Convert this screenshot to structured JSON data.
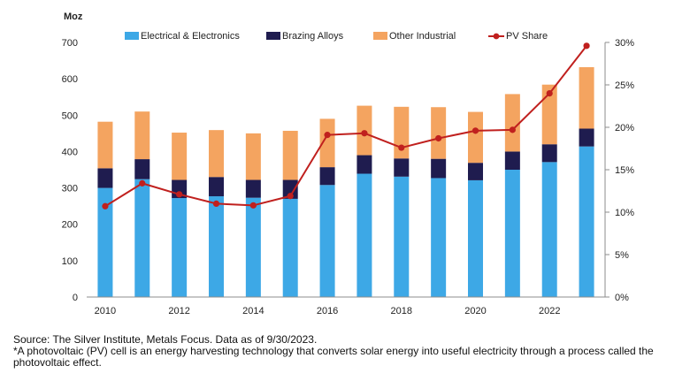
{
  "chart_data": {
    "type": "bar",
    "stacked": true,
    "y_unit_label": "Moz",
    "categories": [
      "2010",
      "2011",
      "2012",
      "2013",
      "2014",
      "2015",
      "2016",
      "2017",
      "2018",
      "2019",
      "2020",
      "2021",
      "2022",
      "2023"
    ],
    "x_tick_labels": [
      "2010",
      "2012",
      "2014",
      "2016",
      "2018",
      "2020",
      "2022"
    ],
    "series": [
      {
        "name": "Electrical & Electronics",
        "color": "#3da8e6",
        "values": [
          300,
          324,
          272,
          277,
          273,
          270,
          308,
          339,
          331,
          327,
          321,
          350,
          371,
          414
        ]
      },
      {
        "name": "Brazing Alloys",
        "color": "#1f1c4f",
        "values": [
          54,
          55,
          50,
          53,
          49,
          52,
          49,
          51,
          50,
          53,
          48,
          50,
          49,
          49
        ]
      },
      {
        "name": "Other Industrial",
        "color": "#f4a460",
        "values": [
          128,
          131,
          130,
          129,
          128,
          135,
          133,
          136,
          142,
          142,
          140,
          158,
          164,
          169
        ]
      }
    ],
    "line_series": {
      "name": "PV Share",
      "color": "#c0201e",
      "axis": "right",
      "values": [
        10.7,
        13.4,
        12.1,
        11.0,
        10.8,
        11.9,
        19.1,
        19.3,
        17.6,
        18.7,
        19.6,
        19.7,
        24.0,
        29.6
      ]
    },
    "ylim": [
      0,
      700
    ],
    "y_ticks": [
      "0",
      "100",
      "200",
      "300",
      "400",
      "500",
      "600",
      "700"
    ],
    "y2lim": [
      0,
      30
    ],
    "y2_ticks": [
      "0%",
      "5%",
      "10%",
      "15%",
      "20%",
      "25%",
      "30%"
    ],
    "legend_position": "top"
  },
  "footer": {
    "source": "Source: The Silver Institute, Metals Focus. Data as of 9/30/2023.",
    "note": "*A photovoltaic (PV) cell is an energy harvesting technology that converts solar energy into useful electricity through a process called the photovoltaic effect."
  }
}
